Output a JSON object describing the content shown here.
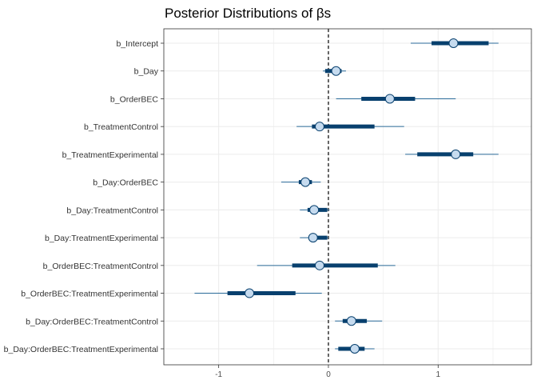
{
  "chart_data": {
    "type": "interval",
    "title": "Posterior Distributions of βs",
    "xlabel": "",
    "ylabel": "",
    "xlim": [
      -1.5,
      1.85
    ],
    "x_ticks": [
      {
        "value": -1,
        "label": "-1"
      },
      {
        "value": 0,
        "label": "0"
      },
      {
        "value": 1,
        "label": "1"
      }
    ],
    "reference_line": 0,
    "grid": true,
    "colors": {
      "outer_interval": "#2a6a99",
      "inner_interval": "#08406e",
      "point_fill": "#c6dbef",
      "point_stroke": "#08406e",
      "grid": "#ebebeb"
    },
    "parameters": [
      {
        "name": "b_Intercept",
        "outer": [
          0.75,
          1.55
        ],
        "inner": [
          0.94,
          1.46
        ],
        "point": 1.14
      },
      {
        "name": "b_Day",
        "outer": [
          -0.05,
          0.16
        ],
        "inner": [
          -0.03,
          0.12
        ],
        "point": 0.07
      },
      {
        "name": "b_OrderBEC",
        "outer": [
          0.07,
          1.16
        ],
        "inner": [
          0.3,
          0.79
        ],
        "point": 0.56
      },
      {
        "name": "b_TreatmentControl",
        "outer": [
          -0.29,
          0.69
        ],
        "inner": [
          -0.15,
          0.42
        ],
        "point": -0.08
      },
      {
        "name": "b_TreatmentExperimental",
        "outer": [
          0.7,
          1.55
        ],
        "inner": [
          0.81,
          1.32
        ],
        "point": 1.16
      },
      {
        "name": "b_Day:OrderBEC",
        "outer": [
          -0.43,
          -0.07
        ],
        "inner": [
          -0.27,
          -0.15
        ],
        "point": -0.21
      },
      {
        "name": "b_Day:TreatmentControl",
        "outer": [
          -0.26,
          0.01
        ],
        "inner": [
          -0.19,
          -0.01
        ],
        "point": -0.13
      },
      {
        "name": "b_Day:TreatmentExperimental",
        "outer": [
          -0.26,
          0.0
        ],
        "inner": [
          -0.18,
          -0.01
        ],
        "point": -0.14
      },
      {
        "name": "b_OrderBEC:TreatmentControl",
        "outer": [
          -0.65,
          0.61
        ],
        "inner": [
          -0.33,
          0.45
        ],
        "point": -0.08
      },
      {
        "name": "b_OrderBEC:TreatmentExperimental",
        "outer": [
          -1.22,
          -0.06
        ],
        "inner": [
          -0.92,
          -0.3
        ],
        "point": -0.72
      },
      {
        "name": "b_Day:OrderBEC:TreatmentControl",
        "outer": [
          0.06,
          0.49
        ],
        "inner": [
          0.13,
          0.35
        ],
        "point": 0.21
      },
      {
        "name": "b_Day:OrderBEC:TreatmentExperimental",
        "outer": [
          0.06,
          0.42
        ],
        "inner": [
          0.09,
          0.33
        ],
        "point": 0.24
      }
    ]
  }
}
